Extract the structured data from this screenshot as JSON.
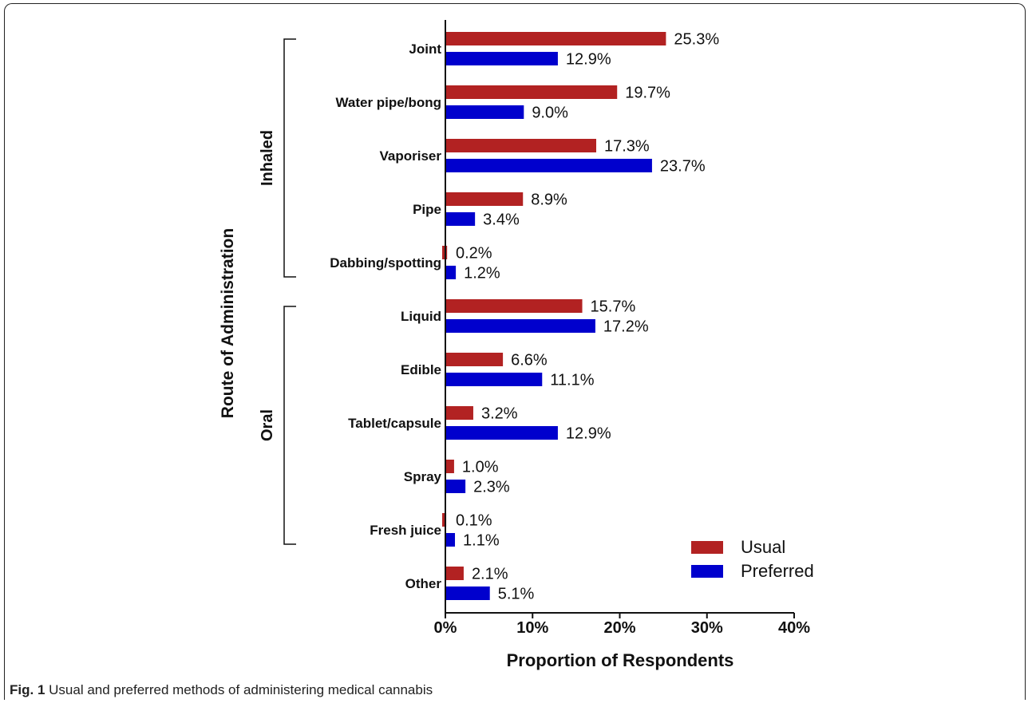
{
  "caption": {
    "label": "Fig. 1",
    "text": "Usual and preferred methods of administering medical cannabis"
  },
  "chart_data": {
    "type": "bar",
    "orientation": "horizontal",
    "categories": [
      "Joint",
      "Water pipe/bong",
      "Vaporiser",
      "Pipe",
      "Dabbing/spotting",
      "Liquid",
      "Edible",
      "Tablet/capsule",
      "Spray",
      "Fresh juice",
      "Other"
    ],
    "groups": [
      {
        "name": "Inhaled",
        "categories": [
          "Joint",
          "Water pipe/bong",
          "Vaporiser",
          "Pipe",
          "Dabbing/spotting"
        ]
      },
      {
        "name": "Oral",
        "categories": [
          "Liquid",
          "Edible",
          "Tablet/capsule",
          "Spray",
          "Fresh juice"
        ]
      }
    ],
    "series": [
      {
        "name": "Usual",
        "color": "#b22222",
        "values": [
          25.3,
          19.7,
          17.3,
          8.9,
          0.2,
          15.7,
          6.6,
          3.2,
          1.0,
          0.1,
          2.1
        ],
        "labels": [
          "25.3%",
          "19.7%",
          "17.3%",
          "8.9%",
          "0.2%",
          "15.7%",
          "6.6%",
          "3.2%",
          "1.0%",
          "0.1%",
          "2.1%"
        ]
      },
      {
        "name": "Preferred",
        "color": "#0000cd",
        "values": [
          12.9,
          9.0,
          23.7,
          3.4,
          1.2,
          17.2,
          11.1,
          12.9,
          2.3,
          1.1,
          5.1
        ],
        "labels": [
          "12.9%",
          "9.0%",
          "23.7%",
          "3.4%",
          "1.2%",
          "17.2%",
          "11.1%",
          "12.9%",
          "2.3%",
          "1.1%",
          "5.1%"
        ]
      }
    ],
    "xlabel": "Proportion of Respondents",
    "ylabel": "Route of Administration",
    "xlim": [
      0,
      40
    ],
    "xticks": [
      "0%",
      "10%",
      "20%",
      "30%",
      "40%"
    ],
    "grid": false,
    "legend": "bottom-right"
  }
}
